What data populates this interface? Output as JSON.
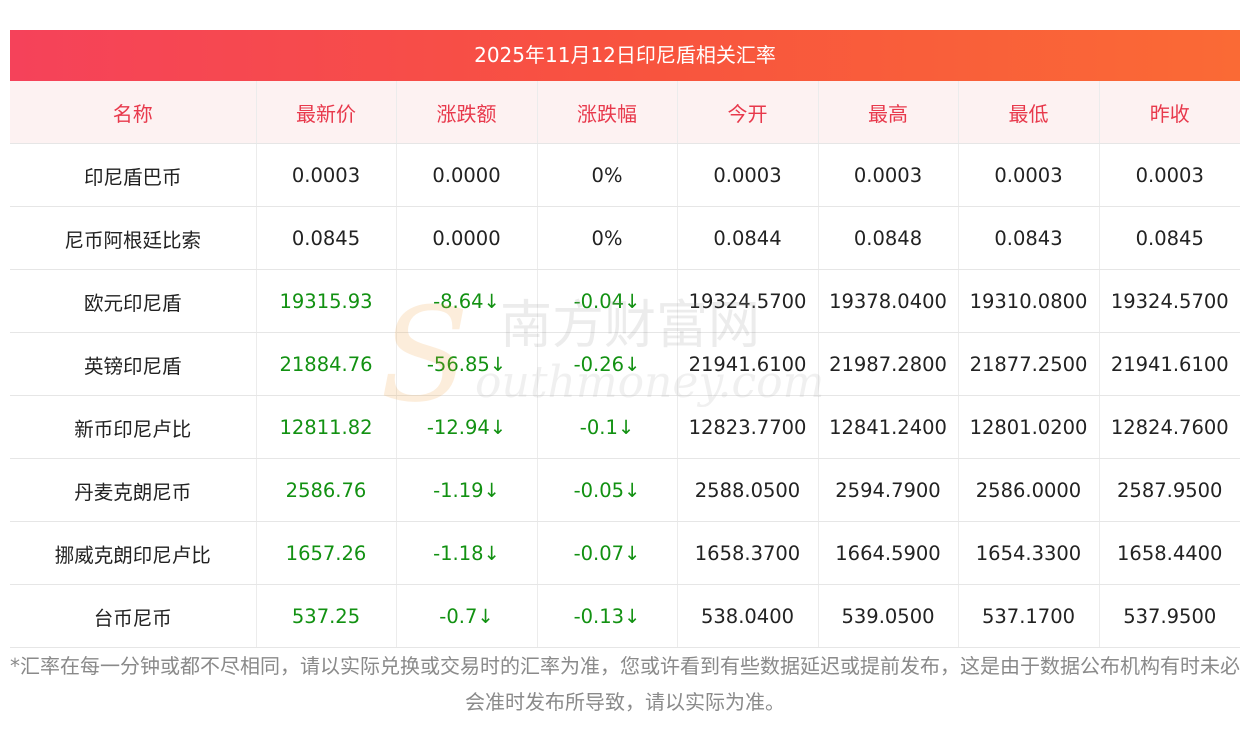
{
  "title": "2025年11月12日印尼盾相关汇率",
  "headers": [
    "名称",
    "最新价",
    "涨跌额",
    "涨跌幅",
    "今开",
    "最高",
    "最低",
    "昨收"
  ],
  "rows": [
    {
      "name": "印尼盾巴币",
      "latest": "0.0003",
      "change": "0.0000",
      "pct": "0%",
      "open": "0.0003",
      "high": "0.0003",
      "low": "0.0003",
      "prev": "0.0003",
      "trend": "flat"
    },
    {
      "name": "尼币阿根廷比索",
      "latest": "0.0845",
      "change": "0.0000",
      "pct": "0%",
      "open": "0.0844",
      "high": "0.0848",
      "low": "0.0843",
      "prev": "0.0845",
      "trend": "flat"
    },
    {
      "name": "欧元印尼盾",
      "latest": "19315.93",
      "change": "-8.64↓",
      "pct": "-0.04↓",
      "open": "19324.5700",
      "high": "19378.0400",
      "low": "19310.0800",
      "prev": "19324.5700",
      "trend": "down"
    },
    {
      "name": "英镑印尼盾",
      "latest": "21884.76",
      "change": "-56.85↓",
      "pct": "-0.26↓",
      "open": "21941.6100",
      "high": "21987.2800",
      "low": "21877.2500",
      "prev": "21941.6100",
      "trend": "down"
    },
    {
      "name": "新币印尼卢比",
      "latest": "12811.82",
      "change": "-12.94↓",
      "pct": "-0.1↓",
      "open": "12823.7700",
      "high": "12841.2400",
      "low": "12801.0200",
      "prev": "12824.7600",
      "trend": "down"
    },
    {
      "name": "丹麦克朗尼币",
      "latest": "2586.76",
      "change": "-1.19↓",
      "pct": "-0.05↓",
      "open": "2588.0500",
      "high": "2594.7900",
      "low": "2586.0000",
      "prev": "2587.9500",
      "trend": "down"
    },
    {
      "name": "挪威克朗印尼卢比",
      "latest": "1657.26",
      "change": "-1.18↓",
      "pct": "-0.07↓",
      "open": "1658.3700",
      "high": "1664.5900",
      "low": "1654.3300",
      "prev": "1658.4400",
      "trend": "down"
    },
    {
      "name": "台币尼币",
      "latest": "537.25",
      "change": "-0.7↓",
      "pct": "-0.13↓",
      "open": "538.0400",
      "high": "539.0500",
      "low": "537.1700",
      "prev": "537.9500",
      "trend": "down"
    }
  ],
  "footnote": "*汇率在每一分钟或都不尽相同，请以实际兑换或交易时的汇率为准，您或许看到有些数据延迟或提前发布，这是由于数据公布机构有时未必会准时发布所导致，请以实际为准。",
  "watermark": {
    "cn": "南方财富网",
    "en": "outhmoney.com",
    "letter": "S"
  },
  "colors": {
    "header_text": "#e8394c",
    "down": "#129112",
    "title_start": "#f5425a",
    "title_end": "#fa6a35"
  }
}
